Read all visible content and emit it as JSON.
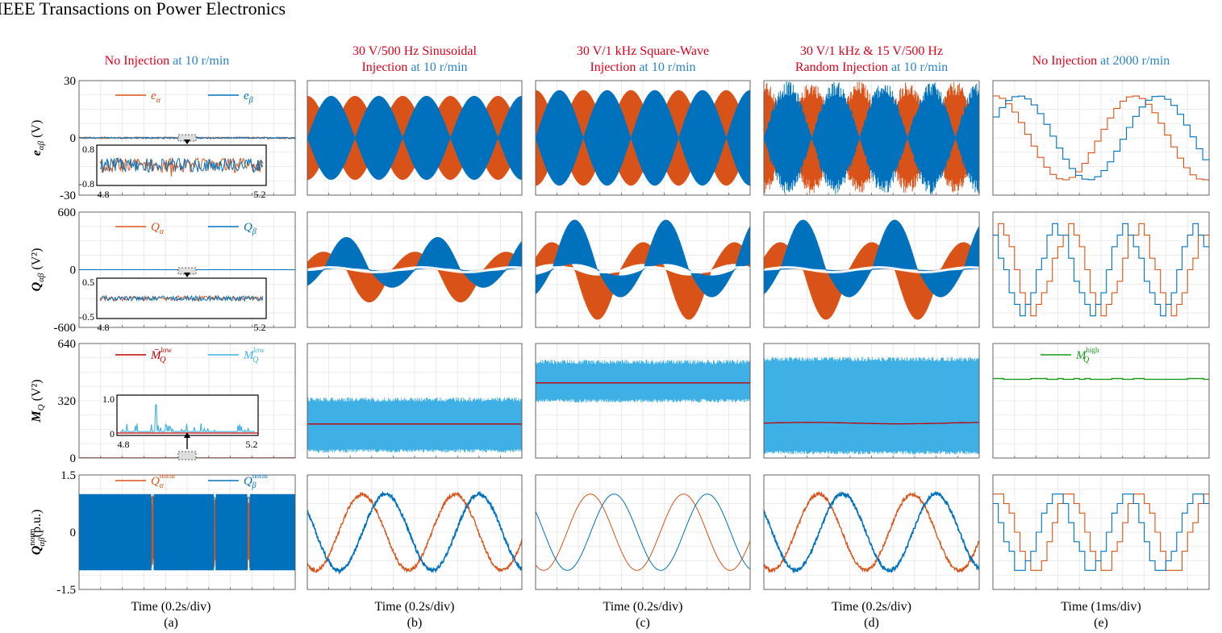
{
  "journal": "IEEE Transactions on Power Electronics",
  "colors": {
    "orange": "#d95319",
    "blue": "#0072bd",
    "red": "#e0001b",
    "lightblue": "#3fb0e6",
    "darkred": "#c00000",
    "green": "#1a9a1a",
    "title_red": "#e0001b",
    "title_blue": "#2a84c8"
  },
  "columns": [
    {
      "id": "a",
      "title_lines": [
        [
          {
            "t": "No Injection",
            "c": "red"
          },
          {
            "t": " at 10 r/min",
            "c": "blue"
          }
        ]
      ],
      "xlabel": "Time (0.2s/div)",
      "panel": "(a)"
    },
    {
      "id": "b",
      "title_lines": [
        [
          {
            "t": "30 V/500 Hz Sinusoidal",
            "c": "red"
          }
        ],
        [
          {
            "t": "Injection",
            "c": "red"
          },
          {
            "t": " at 10 r/min",
            "c": "blue"
          }
        ]
      ],
      "xlabel": "Time (0.2s/div)",
      "panel": "(b)"
    },
    {
      "id": "c",
      "title_lines": [
        [
          {
            "t": "30 V/1 kHz Square-Wave",
            "c": "red"
          }
        ],
        [
          {
            "t": "Injection",
            "c": "red"
          },
          {
            "t": " at 10 r/min",
            "c": "blue"
          }
        ]
      ],
      "xlabel": "Time (0.2s/div)",
      "panel": "(c)"
    },
    {
      "id": "d",
      "title_lines": [
        [
          {
            "t": "30 V/1 kHz & 15 V/500 Hz",
            "c": "red"
          }
        ],
        [
          {
            "t": "Random Injection",
            "c": "red"
          },
          {
            "t": " at 10 r/min",
            "c": "blue"
          }
        ]
      ],
      "xlabel": "Time (0.2s/div)",
      "panel": "(d)"
    },
    {
      "id": "e",
      "title_lines": [
        [
          {
            "t": "No Injection",
            "c": "red"
          },
          {
            "t": " at 2000 r/min",
            "c": "blue"
          }
        ]
      ],
      "xlabel": "Time (1ms/div)",
      "panel": "(e)"
    }
  ],
  "rows": [
    {
      "id": "e_ab",
      "ylabel_main": "e",
      "ylabel_sub": "αβ",
      "ylabel_unit": " (V)",
      "ylim": [
        -30,
        30
      ],
      "yticks": [
        "30",
        "0",
        "-30"
      ],
      "legend": [
        {
          "main": "e",
          "sub": "α",
          "color": "orange"
        },
        {
          "main": "e",
          "sub": "β",
          "color": "blue"
        }
      ],
      "inset": {
        "ylim_labels": [
          "0.8",
          "-0.8"
        ],
        "x_labels": [
          "4.8",
          "5.2"
        ]
      }
    },
    {
      "id": "Q_ab",
      "ylabel_main": "Q",
      "ylabel_sub": "αβ",
      "ylabel_unit": " (V²)",
      "ylim": [
        -600,
        600
      ],
      "yticks": [
        "600",
        "0",
        "-600"
      ],
      "legend": [
        {
          "main": "Q",
          "sub": "α",
          "color": "orange"
        },
        {
          "main": "Q",
          "sub": "β",
          "color": "blue"
        }
      ],
      "inset": {
        "ylim_labels": [
          "0.5",
          "-0.5"
        ],
        "x_labels": [
          "4.8",
          "5.2"
        ]
      }
    },
    {
      "id": "M_Q",
      "ylabel_main": "M",
      "ylabel_sub": "Q",
      "ylabel_unit": " (V²)",
      "ylim": [
        0,
        640
      ],
      "yticks": [
        "640",
        "320",
        "0"
      ],
      "legend": [
        {
          "main": "M̄",
          "sub": "Q",
          "sup": "low",
          "color": "darkred"
        },
        {
          "main": "M",
          "sub": "Q",
          "sup": "low",
          "color": "lightblue"
        }
      ],
      "legend_e": [
        {
          "main": "M",
          "sub": "Q",
          "sup": "high",
          "color": "green"
        }
      ],
      "inset": {
        "ylim_labels": [
          "1.0",
          "0"
        ],
        "x_labels": [
          "4.8",
          "5.2"
        ]
      }
    },
    {
      "id": "Q_norm",
      "ylabel_main": "Q",
      "ylabel_sub": "αβ",
      "ylabel_sup": "norm",
      "ylabel_unit": "(p.u.)",
      "ylim": [
        -1.5,
        1.5
      ],
      "yticks": [
        "1.5",
        "0",
        "-1.5"
      ],
      "legend": [
        {
          "main": "Q",
          "sub": "α",
          "sup": "norm",
          "color": "orange"
        },
        {
          "main": "Q",
          "sub": "β",
          "sup": "norm",
          "color": "blue"
        }
      ]
    }
  ],
  "chart_data": [
    {
      "type": "line",
      "panel": "a",
      "row": "e_ab",
      "ylim": [
        -30,
        30
      ],
      "series": [
        {
          "name": "eα",
          "amplitude": 0.3
        },
        {
          "name": "eβ",
          "amplitude": 0.3
        }
      ]
    },
    {
      "type": "line",
      "panel": "b",
      "row": "e_ab",
      "ylim": [
        -30,
        30
      ],
      "series": [
        {
          "name": "eα",
          "envelope_amplitude": 22
        },
        {
          "name": "eβ",
          "envelope_amplitude": 22
        }
      ]
    },
    {
      "type": "line",
      "panel": "c",
      "row": "e_ab",
      "ylim": [
        -30,
        30
      ],
      "series": [
        {
          "name": "eα",
          "envelope_amplitude": 25
        },
        {
          "name": "eβ",
          "envelope_amplitude": 25
        }
      ]
    },
    {
      "type": "line",
      "panel": "d",
      "row": "e_ab",
      "ylim": [
        -30,
        30
      ],
      "series": [
        {
          "name": "eα",
          "envelope_amplitude": 26
        },
        {
          "name": "eβ",
          "envelope_amplitude": 26
        }
      ]
    },
    {
      "type": "line",
      "panel": "e",
      "row": "e_ab",
      "ylim": [
        -30,
        30
      ],
      "series": [
        {
          "name": "eα",
          "amplitude": 22
        },
        {
          "name": "eβ",
          "amplitude": 22
        }
      ]
    },
    {
      "type": "line",
      "panel": "a",
      "row": "Q_ab",
      "ylim": [
        -600,
        600
      ],
      "series": [
        {
          "name": "Qα",
          "amplitude": 0
        },
        {
          "name": "Qβ",
          "amplitude": 0
        }
      ]
    },
    {
      "type": "line",
      "panel": "b",
      "row": "Q_ab",
      "ylim": [
        -600,
        600
      ],
      "series": [
        {
          "name": "Qα",
          "amplitude": 340
        },
        {
          "name": "Qβ",
          "amplitude": 340
        }
      ]
    },
    {
      "type": "line",
      "panel": "c",
      "row": "Q_ab",
      "ylim": [
        -600,
        600
      ],
      "series": [
        {
          "name": "Qα",
          "amplitude": 520
        },
        {
          "name": "Qβ",
          "amplitude": 520
        }
      ]
    },
    {
      "type": "line",
      "panel": "d",
      "row": "Q_ab",
      "ylim": [
        -600,
        600
      ],
      "series": [
        {
          "name": "Qα",
          "amplitude": 520
        },
        {
          "name": "Qβ",
          "amplitude": 520
        }
      ]
    },
    {
      "type": "line",
      "panel": "e",
      "row": "Q_ab",
      "ylim": [
        -600,
        600
      ],
      "series": [
        {
          "name": "Qα",
          "amplitude": 430
        },
        {
          "name": "Qβ",
          "amplitude": 430
        }
      ]
    },
    {
      "type": "line",
      "panel": "a",
      "row": "M_Q",
      "ylim": [
        0,
        640
      ],
      "series": [
        {
          "name": "M̄Q low",
          "mean": 0
        },
        {
          "name": "MQ low",
          "max": 0
        }
      ]
    },
    {
      "type": "line",
      "panel": "b",
      "row": "M_Q",
      "ylim": [
        0,
        640
      ],
      "series": [
        {
          "name": "M̄Q low",
          "mean": 190
        },
        {
          "name": "MQ low",
          "max": 340,
          "min": 30
        }
      ]
    },
    {
      "type": "line",
      "panel": "c",
      "row": "M_Q",
      "ylim": [
        0,
        640
      ],
      "series": [
        {
          "name": "M̄Q low",
          "mean": 420
        },
        {
          "name": "MQ low",
          "max": 550,
          "min": 310
        }
      ]
    },
    {
      "type": "line",
      "panel": "d",
      "row": "M_Q",
      "ylim": [
        0,
        640
      ],
      "series": [
        {
          "name": "M̄Q low",
          "mean": 195
        },
        {
          "name": "MQ low",
          "max": 560,
          "min": 20
        }
      ]
    },
    {
      "type": "line",
      "panel": "e",
      "row": "M_Q",
      "ylim": [
        0,
        640
      ],
      "series": [
        {
          "name": "MQ high",
          "mean": 440
        }
      ]
    },
    {
      "type": "line",
      "panel": "a",
      "row": "Q_norm",
      "ylim": [
        -1.5,
        1.5
      ],
      "series": [
        {
          "name": "Qα norm",
          "max": 1,
          "min": -1
        },
        {
          "name": "Qβ norm",
          "max": 1,
          "min": -1
        }
      ]
    },
    {
      "type": "line",
      "panel": "b",
      "row": "Q_norm",
      "ylim": [
        -1.5,
        1.5
      ],
      "series": [
        {
          "name": "Qα norm",
          "amplitude": 1
        },
        {
          "name": "Qβ norm",
          "amplitude": 1
        }
      ]
    },
    {
      "type": "line",
      "panel": "c",
      "row": "Q_norm",
      "ylim": [
        -1.5,
        1.5
      ],
      "series": [
        {
          "name": "Qα norm",
          "amplitude": 1
        },
        {
          "name": "Qβ norm",
          "amplitude": 1
        }
      ]
    },
    {
      "type": "line",
      "panel": "d",
      "row": "Q_norm",
      "ylim": [
        -1.5,
        1.5
      ],
      "series": [
        {
          "name": "Qα norm",
          "amplitude": 1
        },
        {
          "name": "Qβ norm",
          "amplitude": 1
        }
      ]
    },
    {
      "type": "line",
      "panel": "e",
      "row": "Q_norm",
      "ylim": [
        -1.5,
        1.5
      ],
      "series": [
        {
          "name": "Qα norm",
          "amplitude": 1
        },
        {
          "name": "Qβ norm",
          "amplitude": 1
        }
      ]
    }
  ]
}
